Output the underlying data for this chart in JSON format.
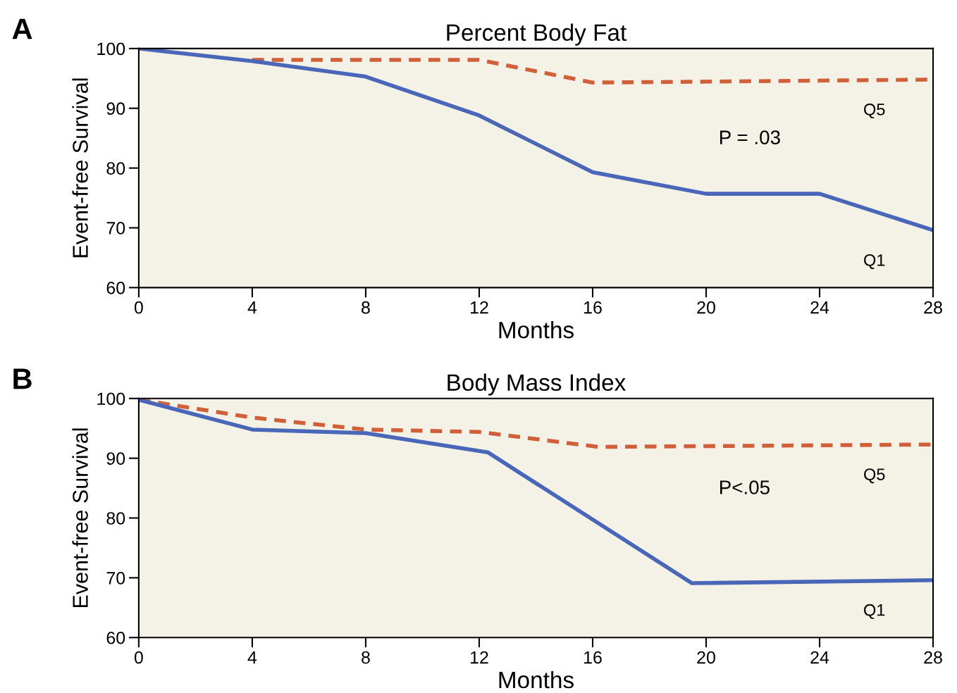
{
  "chart_data": [
    {
      "type": "line",
      "title": "Percent Body Fat",
      "xlabel": "Months",
      "ylabel": "Event-free Survival",
      "xlim": [
        0,
        28
      ],
      "xticks": [
        0,
        4,
        8,
        12,
        16,
        20,
        24,
        28
      ],
      "ylim": [
        60,
        100
      ],
      "yticks": [
        60,
        70,
        80,
        90,
        100
      ],
      "grid": false,
      "legend": false,
      "marker": "none",
      "annotations": [
        "A",
        "P = .03"
      ],
      "series": [
        {
          "name": "Q5",
          "color": "#d0603a",
          "line_style": "dashed",
          "x": [
            4,
            12,
            16,
            28
          ],
          "values": [
            98.1,
            98.1,
            94.3,
            94.8
          ]
        },
        {
          "name": "Q1",
          "color": "#4a66b8",
          "line_style": "solid",
          "x": [
            0,
            4,
            8,
            12,
            16,
            20,
            24,
            28
          ],
          "values": [
            100,
            97.9,
            95.3,
            88.8,
            79.3,
            75.7,
            75.7,
            69.6
          ]
        }
      ]
    },
    {
      "type": "line",
      "title": "Body Mass Index",
      "xlabel": "Months",
      "ylabel": "Event-free Survival",
      "xlim": [
        0,
        28
      ],
      "xticks": [
        0,
        4,
        8,
        12,
        16,
        20,
        24,
        28
      ],
      "ylim": [
        60,
        100
      ],
      "yticks": [
        60,
        70,
        80,
        90,
        100
      ],
      "grid": false,
      "legend": false,
      "marker": "none",
      "annotations": [
        "B",
        "P<.05"
      ],
      "series": [
        {
          "name": "Q5",
          "color": "#d0603a",
          "line_style": "dashed",
          "x": [
            0,
            4,
            8,
            12,
            16.2,
            28
          ],
          "values": [
            99.8,
            96.8,
            94.8,
            94.4,
            91.9,
            92.3
          ]
        },
        {
          "name": "Q1",
          "color": "#4a66b8",
          "line_style": "solid",
          "x": [
            0,
            4,
            8,
            12.3,
            19.5,
            28
          ],
          "values": [
            99.8,
            94.8,
            94.2,
            91,
            69.1,
            69.6
          ]
        }
      ]
    }
  ]
}
